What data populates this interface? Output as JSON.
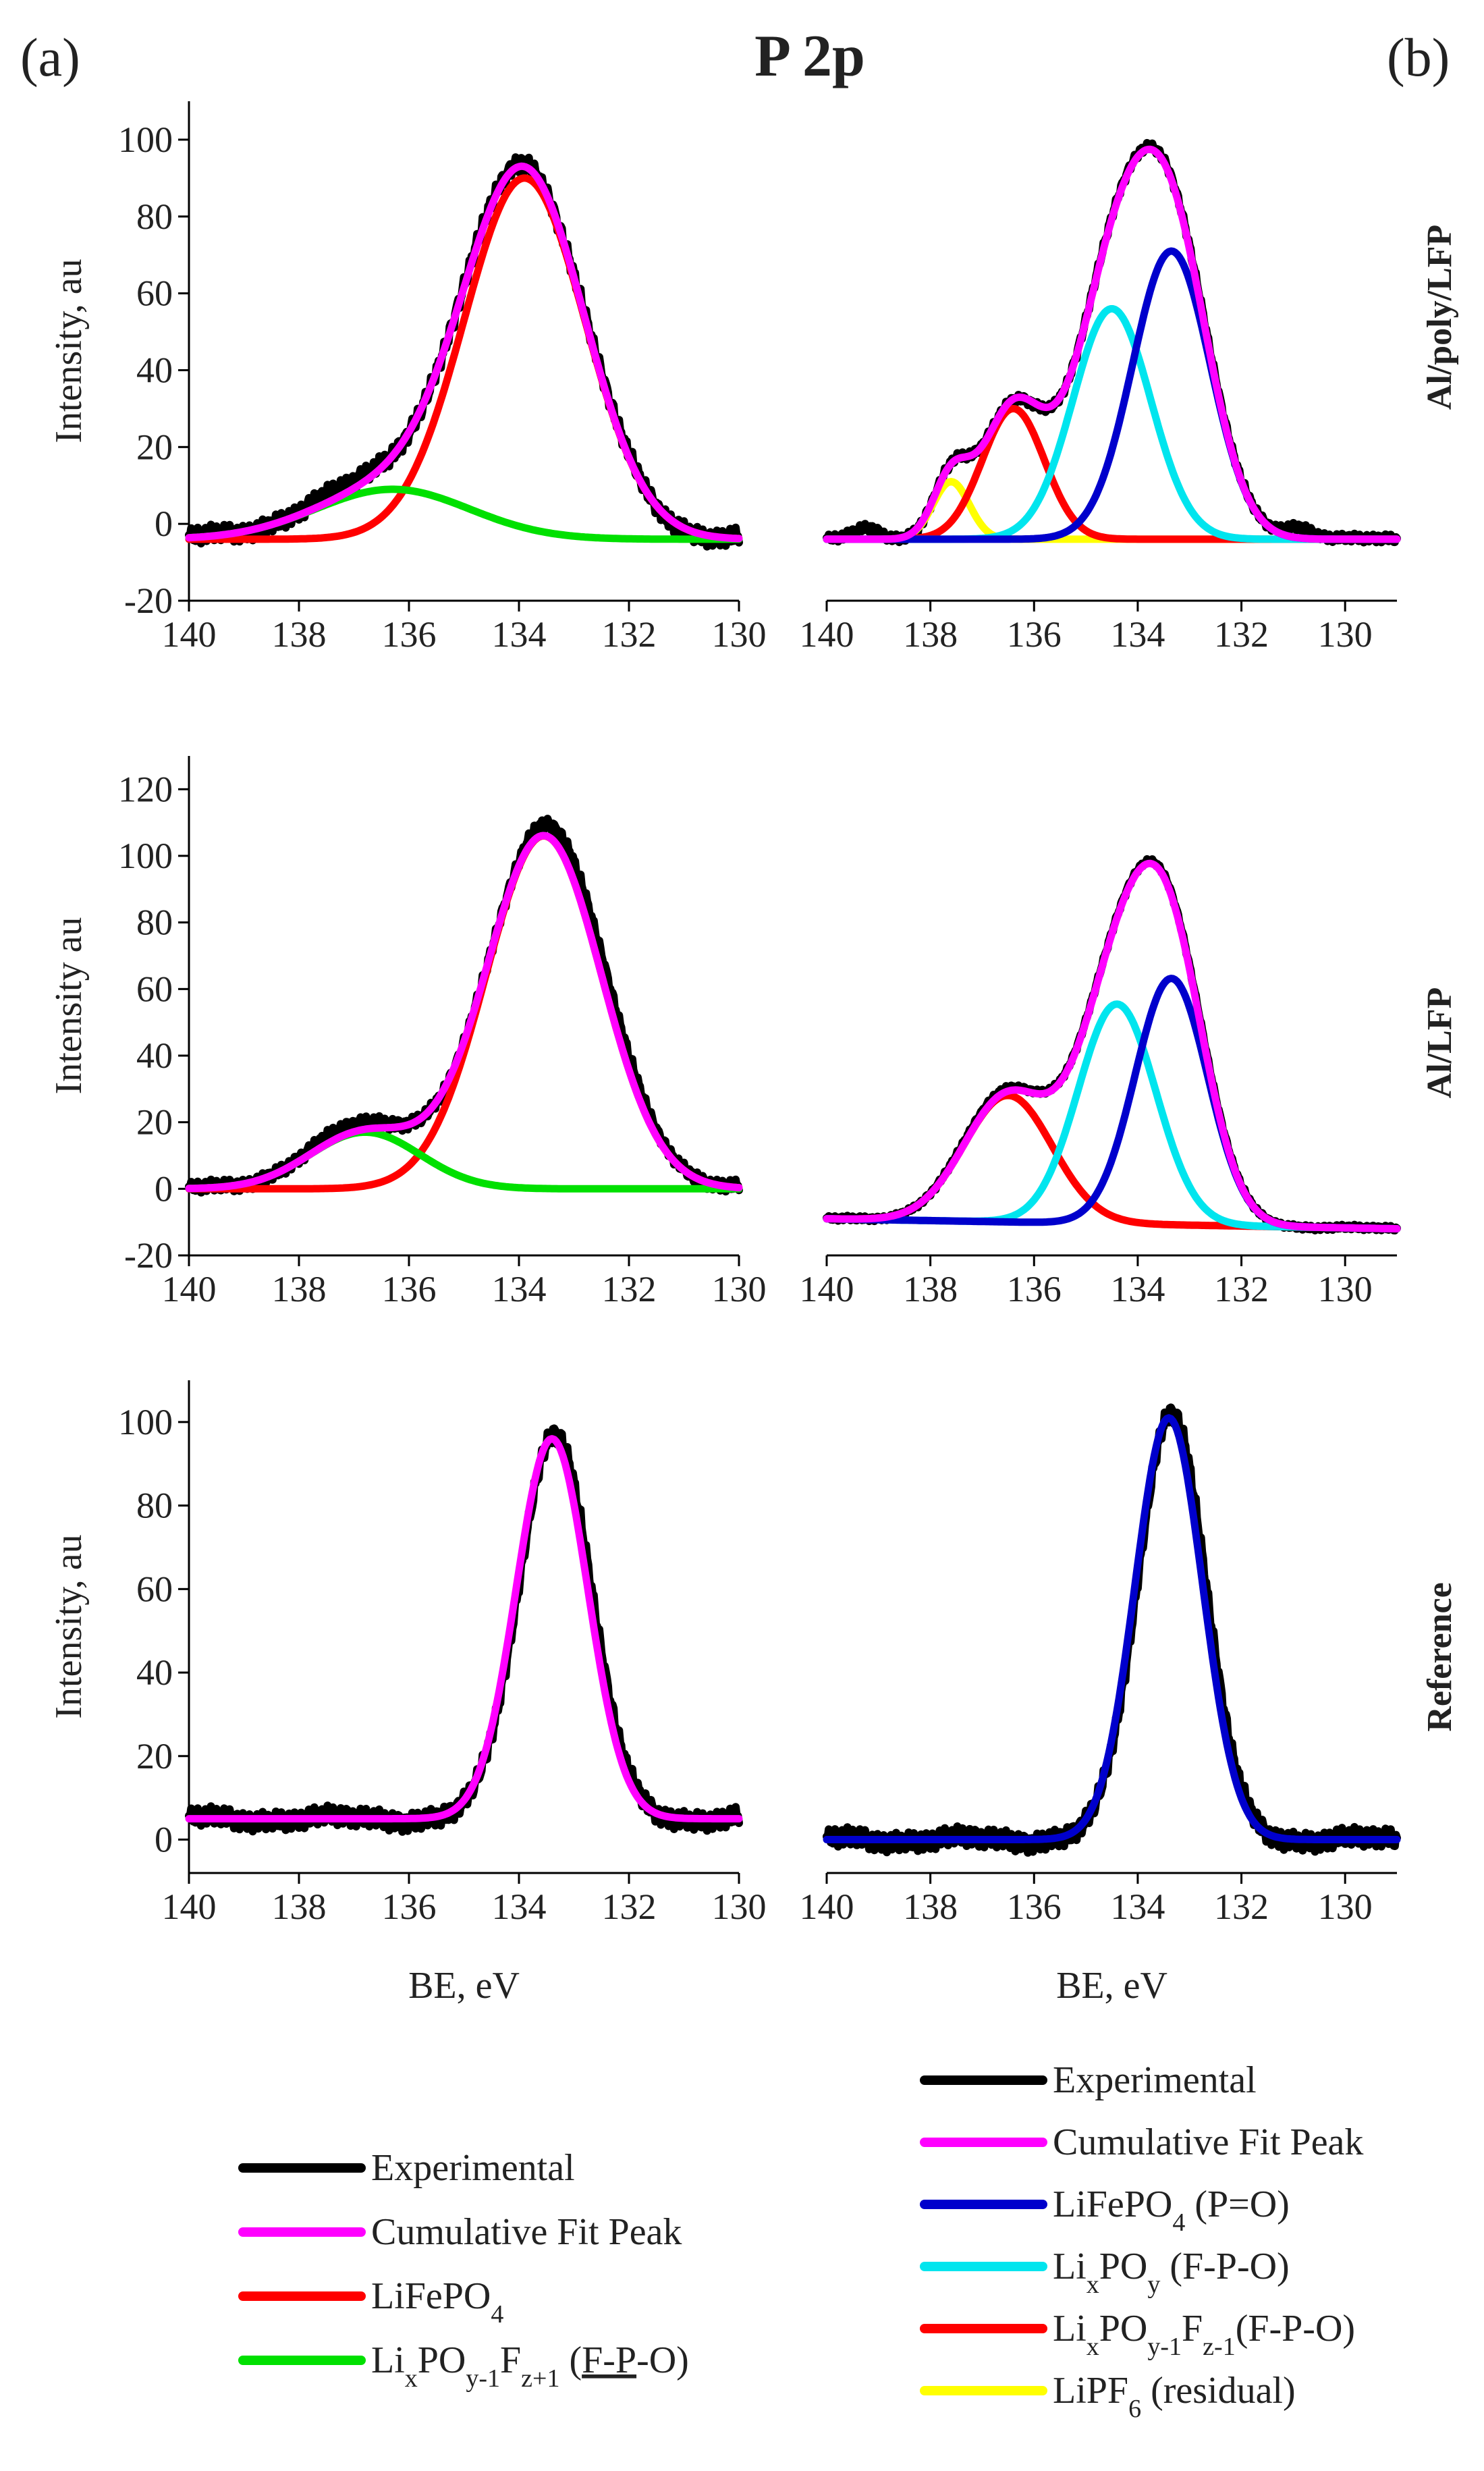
{
  "figure": {
    "title": "P 2p",
    "panel_a": "(a)",
    "panel_b": "(b)",
    "row_labels": [
      "Al/poly/LFP",
      "Al/LFP",
      "Reference"
    ],
    "colors": {
      "experimental": "#000000",
      "cumulative": "#ff00ff",
      "lifepo4_a": "#ff0000",
      "lixpo_f_a": "#00e000",
      "lifepo4_po": "#0000cc",
      "lixpoy": "#00e5ee",
      "lixpo_f_b": "#ff0000",
      "lipf6": "#ffff00"
    },
    "legend_a": [
      {
        "color": "#000000",
        "parts": [
          {
            "t": "Experimental"
          }
        ]
      },
      {
        "color": "#ff00ff",
        "parts": [
          {
            "t": "Cumulative Fit Peak"
          }
        ]
      },
      {
        "color": "#ff0000",
        "parts": [
          {
            "t": "LiFePO"
          },
          {
            "t": "4",
            "sub": true
          }
        ]
      },
      {
        "color": "#00e000",
        "parts": [
          {
            "t": "Li"
          },
          {
            "t": "x",
            "sub": true
          },
          {
            "t": "PO"
          },
          {
            "t": "y-1",
            "sub": true
          },
          {
            "t": "F"
          },
          {
            "t": "z+1",
            "sub": true
          },
          {
            "t": " ("
          },
          {
            "t": "F-P",
            "underline": true
          },
          {
            "t": "-O)"
          }
        ]
      }
    ],
    "legend_b": [
      {
        "color": "#000000",
        "parts": [
          {
            "t": "Experimental"
          }
        ]
      },
      {
        "color": "#ff00ff",
        "parts": [
          {
            "t": "Cumulative Fit Peak"
          }
        ]
      },
      {
        "color": "#0000cc",
        "parts": [
          {
            "t": "LiFePO"
          },
          {
            "t": "4",
            "sub": true
          },
          {
            "t": " (P=O)"
          }
        ]
      },
      {
        "color": "#00e5ee",
        "parts": [
          {
            "t": "Li"
          },
          {
            "t": "x",
            "sub": true
          },
          {
            "t": "PO"
          },
          {
            "t": "y",
            "sub": true
          },
          {
            "t": " (F-P-O)"
          }
        ]
      },
      {
        "color": "#ff0000",
        "parts": [
          {
            "t": "Li"
          },
          {
            "t": "x",
            "sub": true
          },
          {
            "t": "PO"
          },
          {
            "t": "y-1",
            "sub": true
          },
          {
            "t": "F"
          },
          {
            "t": "z-1",
            "sub": true
          },
          {
            "t": "(F-P-O)"
          }
        ]
      },
      {
        "color": "#ffff00",
        "parts": [
          {
            "t": "LiPF"
          },
          {
            "t": "6",
            "sub": true
          },
          {
            "t": " (residual)"
          }
        ]
      }
    ]
  },
  "chart_data": [
    {
      "id": "a1",
      "type": "line",
      "row_label": "Al/poly/LFP",
      "column": "(a)",
      "xlabel": "",
      "ylabel": "Intensity, au",
      "xlim": [
        140,
        130
      ],
      "ylim": [
        -20,
        110
      ],
      "xticks": [
        140,
        138,
        136,
        134,
        132,
        130
      ],
      "yticks": [
        -20,
        0,
        20,
        40,
        60,
        80,
        100
      ],
      "series": [
        {
          "name": "LiFePO4",
          "color": "#ff0000",
          "base": -4,
          "peaks": [
            {
              "c": 133.9,
              "a": 94,
              "w": 1.1
            }
          ]
        },
        {
          "name": "LixPOy-1Fz+1 (F-P-O)",
          "color": "#00e000",
          "base": -4,
          "peaks": [
            {
              "c": 136.3,
              "a": 13,
              "w": 1.4
            }
          ]
        },
        {
          "name": "Cumulative Fit Peak",
          "color": "#ff00ff",
          "base": -4,
          "peaks": [
            {
              "c": 133.9,
              "a": 94,
              "w": 1.1
            },
            {
              "c": 136.3,
              "a": 13,
              "w": 1.4
            }
          ]
        },
        {
          "name": "Experimental",
          "color": "#000000",
          "base": -4,
          "noise": 2.5,
          "peaks": [
            {
              "c": 133.9,
              "a": 96,
              "w": 1.1
            },
            {
              "c": 136.5,
              "a": 14,
              "w": 1.3
            }
          ]
        }
      ]
    },
    {
      "id": "b1",
      "type": "line",
      "row_label": "Al/poly/LFP",
      "column": "(b)",
      "xlabel": "",
      "ylabel": "",
      "xlim": [
        140,
        129
      ],
      "ylim": [
        -20,
        110
      ],
      "xticks": [
        140,
        138,
        136,
        134,
        132,
        130
      ],
      "yticks": [],
      "series": [
        {
          "name": "LiPF6 (residual)",
          "color": "#ffff00",
          "base": -4,
          "peaks": [
            {
              "c": 137.6,
              "a": 15,
              "w": 0.35
            }
          ]
        },
        {
          "name": "LixPOy-1Fz-1(F-P-O)",
          "color": "#ff0000",
          "base": -4,
          "peaks": [
            {
              "c": 136.4,
              "a": 34,
              "w": 0.6
            }
          ]
        },
        {
          "name": "LixPOy (F-P-O)",
          "color": "#00e5ee",
          "base": -4,
          "peaks": [
            {
              "c": 134.5,
              "a": 60,
              "w": 0.75
            }
          ]
        },
        {
          "name": "LiFePO4 (P=O)",
          "color": "#0000cc",
          "base": -4,
          "peaks": [
            {
              "c": 133.35,
              "a": 75,
              "w": 0.75
            }
          ]
        },
        {
          "name": "Cumulative Fit Peak",
          "color": "#ff00ff",
          "base": -4,
          "peaks": [
            {
              "c": 137.6,
              "a": 15,
              "w": 0.35
            },
            {
              "c": 136.4,
              "a": 34,
              "w": 0.6
            },
            {
              "c": 134.5,
              "a": 60,
              "w": 0.75
            },
            {
              "c": 133.35,
              "a": 75,
              "w": 0.75
            }
          ]
        },
        {
          "name": "Experimental",
          "color": "#000000",
          "base": -4,
          "noise": 1.2,
          "peaks": [
            {
              "c": 137.6,
              "a": 15,
              "w": 0.35
            },
            {
              "c": 136.4,
              "a": 34,
              "w": 0.6
            },
            {
              "c": 134.5,
              "a": 60,
              "w": 0.75
            },
            {
              "c": 133.35,
              "a": 76,
              "w": 0.75
            },
            {
              "c": 130.9,
              "a": 3,
              "w": 0.3
            },
            {
              "c": 139.2,
              "a": 3,
              "w": 0.25
            }
          ]
        }
      ]
    },
    {
      "id": "a2",
      "type": "line",
      "row_label": "Al/LFP",
      "column": "(a)",
      "xlabel": "",
      "ylabel": "Intensity au",
      "xlim": [
        140,
        130
      ],
      "ylim": [
        -20,
        130
      ],
      "xticks": [
        140,
        138,
        136,
        134,
        132,
        130
      ],
      "yticks": [
        -20,
        0,
        20,
        40,
        60,
        80,
        100,
        120
      ],
      "series": [
        {
          "name": "LiFePO4",
          "color": "#ff0000",
          "base": 0,
          "peaks": [
            {
              "c": 133.55,
              "a": 106,
              "w": 1.05
            }
          ]
        },
        {
          "name": "LixPOy-1Fz+1 (F-P-O)",
          "color": "#00e000",
          "base": 0,
          "peaks": [
            {
              "c": 136.8,
              "a": 17,
              "w": 1.0
            }
          ]
        },
        {
          "name": "Cumulative Fit Peak",
          "color": "#ff00ff",
          "base": 0,
          "peaks": [
            {
              "c": 133.55,
              "a": 106,
              "w": 1.05
            },
            {
              "c": 136.8,
              "a": 17,
              "w": 1.0
            }
          ]
        },
        {
          "name": "Experimental",
          "color": "#000000",
          "base": 0,
          "noise": 2.0,
          "peaks": [
            {
              "c": 133.5,
              "a": 110,
              "w": 1.05
            },
            {
              "c": 136.8,
              "a": 19,
              "w": 1.0
            }
          ]
        }
      ]
    },
    {
      "id": "b2",
      "type": "line",
      "row_label": "Al/LFP",
      "column": "(b)",
      "xlabel": "",
      "ylabel": "",
      "xlim": [
        140,
        129
      ],
      "ylim": [
        -20,
        130
      ],
      "xticks": [
        140,
        138,
        136,
        134,
        132,
        130
      ],
      "yticks": [],
      "series": [
        {
          "name": "LixPOy-1Fz-1(F-P-O)",
          "color": "#ff0000",
          "slope": true,
          "peaks": [
            {
              "c": 136.5,
              "a": 38,
              "w": 0.85
            }
          ]
        },
        {
          "name": "LixPOy (F-P-O)",
          "color": "#00e5ee",
          "slope": true,
          "peaks": [
            {
              "c": 134.4,
              "a": 66,
              "w": 0.75
            }
          ]
        },
        {
          "name": "LiFePO4 (P=O)",
          "color": "#0000cc",
          "slope": true,
          "peaks": [
            {
              "c": 133.35,
              "a": 74,
              "w": 0.7
            }
          ]
        },
        {
          "name": "Cumulative Fit Peak",
          "color": "#ff00ff",
          "slope": true,
          "peaks": [
            {
              "c": 136.5,
              "a": 38,
              "w": 0.85
            },
            {
              "c": 134.4,
              "a": 66,
              "w": 0.75
            },
            {
              "c": 133.35,
              "a": 74,
              "w": 0.7
            }
          ]
        },
        {
          "name": "Experimental",
          "color": "#000000",
          "slope": true,
          "noise": 0.8,
          "peaks": [
            {
              "c": 136.5,
              "a": 39,
              "w": 0.85
            },
            {
              "c": 134.4,
              "a": 66,
              "w": 0.75
            },
            {
              "c": 133.35,
              "a": 75,
              "w": 0.7
            }
          ]
        }
      ]
    },
    {
      "id": "a3",
      "type": "line",
      "row_label": "Reference",
      "column": "(a)",
      "xlabel": "BE, eV",
      "ylabel": "Intensity, au",
      "xlim": [
        140,
        130
      ],
      "ylim": [
        -8,
        110
      ],
      "xticks": [
        140,
        138,
        136,
        134,
        132,
        130
      ],
      "yticks": [
        0,
        20,
        40,
        60,
        80,
        100
      ],
      "series": [
        {
          "name": "Cumulative Fit Peak",
          "color": "#ff00ff",
          "base": 5,
          "peaks": [
            {
              "c": 133.4,
              "a": 91,
              "w": 0.65
            }
          ]
        },
        {
          "name": "Experimental",
          "color": "#000000",
          "base": 5,
          "noise": 2.5,
          "peaks": [
            {
              "c": 133.35,
              "a": 93,
              "w": 0.65
            }
          ]
        }
      ]
    },
    {
      "id": "b3",
      "type": "line",
      "row_label": "Reference",
      "column": "(b)",
      "xlabel": "BE, eV",
      "ylabel": "",
      "xlim": [
        140,
        129
      ],
      "ylim": [
        -8,
        110
      ],
      "xticks": [
        140,
        138,
        136,
        134,
        132,
        130
      ],
      "yticks": [],
      "series": [
        {
          "name": "LiFePO4 (P=O)",
          "color": "#0000cc",
          "base": 0,
          "peaks": [
            {
              "c": 133.4,
              "a": 101,
              "w": 0.65
            }
          ]
        },
        {
          "name": "Experimental",
          "color": "#000000",
          "base": 0,
          "noise": 2.5,
          "peaks": [
            {
              "c": 133.35,
              "a": 103,
              "w": 0.65
            }
          ]
        }
      ]
    }
  ]
}
